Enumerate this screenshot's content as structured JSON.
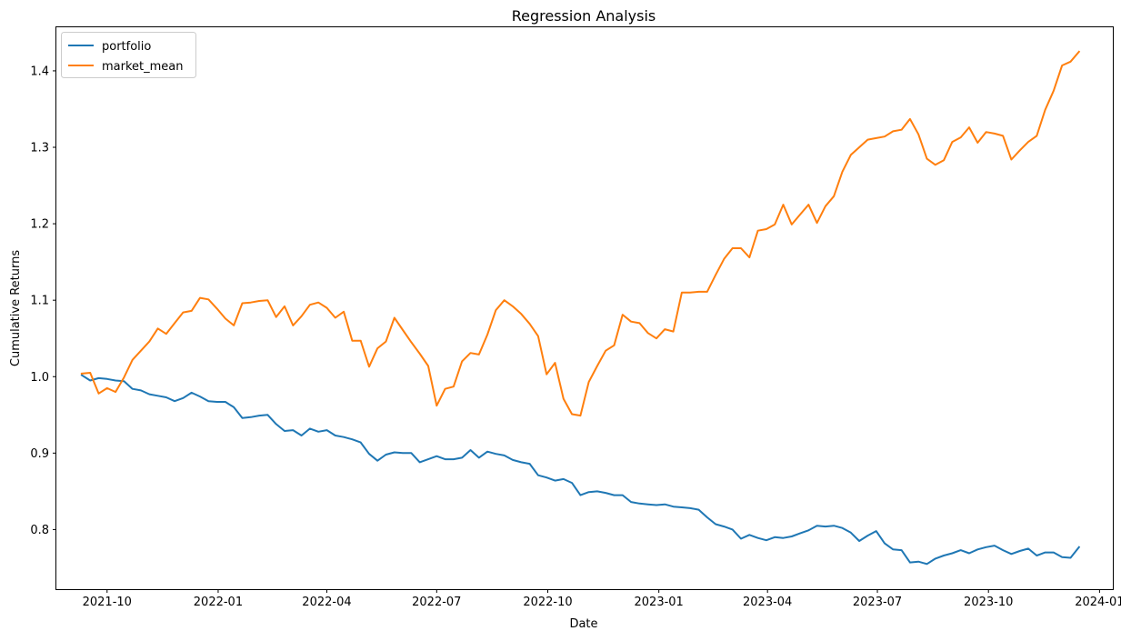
{
  "chart_data": {
    "type": "line",
    "title": "Regression Analysis",
    "xlabel": "Date",
    "ylabel": "Cumulative Returns",
    "x_type": "date",
    "xlim": [
      "2021-08-20",
      "2024-01-12"
    ],
    "ylim": [
      0.722,
      1.457
    ],
    "grid": false,
    "legend_position": "top-left",
    "x_ticks": [
      {
        "date": "2021-10-01",
        "label": "2021-10"
      },
      {
        "date": "2022-01-01",
        "label": "2022-01"
      },
      {
        "date": "2022-04-01",
        "label": "2022-04"
      },
      {
        "date": "2022-07-01",
        "label": "2022-07"
      },
      {
        "date": "2022-10-01",
        "label": "2022-10"
      },
      {
        "date": "2023-01-01",
        "label": "2023-01"
      },
      {
        "date": "2023-04-01",
        "label": "2023-04"
      },
      {
        "date": "2023-07-01",
        "label": "2023-07"
      },
      {
        "date": "2023-10-01",
        "label": "2023-10"
      },
      {
        "date": "2024-01-01",
        "label": "2024-01"
      }
    ],
    "y_ticks": [
      {
        "value": 0.8,
        "label": "0.8"
      },
      {
        "value": 0.9,
        "label": "0.9"
      },
      {
        "value": 1.0,
        "label": "1.0"
      },
      {
        "value": 1.1,
        "label": "1.1"
      },
      {
        "value": 1.2,
        "label": "1.2"
      },
      {
        "value": 1.3,
        "label": "1.3"
      },
      {
        "value": 1.4,
        "label": "1.4"
      }
    ],
    "series": [
      {
        "name": "portfolio",
        "color": "#1f77b4",
        "points": [
          [
            "2021-09-10",
            1.002
          ],
          [
            "2021-09-17",
            0.995
          ],
          [
            "2021-09-24",
            0.998
          ],
          [
            "2021-10-01",
            0.997
          ],
          [
            "2021-10-08",
            0.995
          ],
          [
            "2021-10-15",
            0.994
          ],
          [
            "2021-10-22",
            0.984
          ],
          [
            "2021-10-29",
            0.982
          ],
          [
            "2021-11-05",
            0.977
          ],
          [
            "2021-11-12",
            0.975
          ],
          [
            "2021-11-19",
            0.973
          ],
          [
            "2021-11-26",
            0.968
          ],
          [
            "2021-12-03",
            0.972
          ],
          [
            "2021-12-10",
            0.979
          ],
          [
            "2021-12-17",
            0.974
          ],
          [
            "2021-12-24",
            0.968
          ],
          [
            "2021-12-31",
            0.967
          ],
          [
            "2022-01-07",
            0.967
          ],
          [
            "2022-01-14",
            0.96
          ],
          [
            "2022-01-21",
            0.946
          ],
          [
            "2022-01-28",
            0.947
          ],
          [
            "2022-02-04",
            0.949
          ],
          [
            "2022-02-11",
            0.95
          ],
          [
            "2022-02-18",
            0.938
          ],
          [
            "2022-02-25",
            0.929
          ],
          [
            "2022-03-04",
            0.93
          ],
          [
            "2022-03-11",
            0.923
          ],
          [
            "2022-03-18",
            0.932
          ],
          [
            "2022-03-25",
            0.928
          ],
          [
            "2022-04-01",
            0.93
          ],
          [
            "2022-04-08",
            0.923
          ],
          [
            "2022-04-15",
            0.921
          ],
          [
            "2022-04-22",
            0.918
          ],
          [
            "2022-04-29",
            0.914
          ],
          [
            "2022-05-06",
            0.899
          ],
          [
            "2022-05-13",
            0.89
          ],
          [
            "2022-05-20",
            0.898
          ],
          [
            "2022-05-27",
            0.901
          ],
          [
            "2022-06-03",
            0.9
          ],
          [
            "2022-06-10",
            0.9
          ],
          [
            "2022-06-17",
            0.888
          ],
          [
            "2022-06-24",
            0.892
          ],
          [
            "2022-07-01",
            0.896
          ],
          [
            "2022-07-08",
            0.892
          ],
          [
            "2022-07-15",
            0.892
          ],
          [
            "2022-07-22",
            0.894
          ],
          [
            "2022-07-29",
            0.904
          ],
          [
            "2022-08-05",
            0.894
          ],
          [
            "2022-08-12",
            0.902
          ],
          [
            "2022-08-19",
            0.899
          ],
          [
            "2022-08-26",
            0.897
          ],
          [
            "2022-09-02",
            0.891
          ],
          [
            "2022-09-09",
            0.888
          ],
          [
            "2022-09-16",
            0.886
          ],
          [
            "2022-09-23",
            0.871
          ],
          [
            "2022-09-30",
            0.868
          ],
          [
            "2022-10-07",
            0.864
          ],
          [
            "2022-10-14",
            0.866
          ],
          [
            "2022-10-21",
            0.861
          ],
          [
            "2022-10-28",
            0.845
          ],
          [
            "2022-11-04",
            0.849
          ],
          [
            "2022-11-11",
            0.85
          ],
          [
            "2022-11-18",
            0.848
          ],
          [
            "2022-11-25",
            0.845
          ],
          [
            "2022-12-02",
            0.845
          ],
          [
            "2022-12-09",
            0.836
          ],
          [
            "2022-12-16",
            0.834
          ],
          [
            "2022-12-23",
            0.833
          ],
          [
            "2022-12-30",
            0.832
          ],
          [
            "2023-01-06",
            0.833
          ],
          [
            "2023-01-13",
            0.83
          ],
          [
            "2023-01-20",
            0.829
          ],
          [
            "2023-01-27",
            0.828
          ],
          [
            "2023-02-03",
            0.826
          ],
          [
            "2023-02-10",
            0.816
          ],
          [
            "2023-02-17",
            0.807
          ],
          [
            "2023-02-24",
            0.804
          ],
          [
            "2023-03-03",
            0.8
          ],
          [
            "2023-03-10",
            0.788
          ],
          [
            "2023-03-17",
            0.793
          ],
          [
            "2023-03-24",
            0.789
          ],
          [
            "2023-03-31",
            0.786
          ],
          [
            "2023-04-07",
            0.79
          ],
          [
            "2023-04-14",
            0.789
          ],
          [
            "2023-04-21",
            0.791
          ],
          [
            "2023-04-28",
            0.795
          ],
          [
            "2023-05-05",
            0.799
          ],
          [
            "2023-05-12",
            0.805
          ],
          [
            "2023-05-19",
            0.804
          ],
          [
            "2023-05-26",
            0.805
          ],
          [
            "2023-06-02",
            0.802
          ],
          [
            "2023-06-09",
            0.796
          ],
          [
            "2023-06-16",
            0.785
          ],
          [
            "2023-06-23",
            0.792
          ],
          [
            "2023-06-30",
            0.798
          ],
          [
            "2023-07-07",
            0.782
          ],
          [
            "2023-07-14",
            0.774
          ],
          [
            "2023-07-21",
            0.773
          ],
          [
            "2023-07-28",
            0.757
          ],
          [
            "2023-08-04",
            0.758
          ],
          [
            "2023-08-11",
            0.755
          ],
          [
            "2023-08-18",
            0.762
          ],
          [
            "2023-08-25",
            0.766
          ],
          [
            "2023-09-01",
            0.769
          ],
          [
            "2023-09-08",
            0.773
          ],
          [
            "2023-09-15",
            0.769
          ],
          [
            "2023-09-22",
            0.774
          ],
          [
            "2023-09-29",
            0.777
          ],
          [
            "2023-10-06",
            0.779
          ],
          [
            "2023-10-13",
            0.773
          ],
          [
            "2023-10-20",
            0.768
          ],
          [
            "2023-10-27",
            0.772
          ],
          [
            "2023-11-03",
            0.775
          ],
          [
            "2023-11-10",
            0.766
          ],
          [
            "2023-11-17",
            0.77
          ],
          [
            "2023-11-24",
            0.77
          ],
          [
            "2023-12-01",
            0.764
          ],
          [
            "2023-12-08",
            0.763
          ],
          [
            "2023-12-15",
            0.777
          ]
        ]
      },
      {
        "name": "market_mean",
        "color": "#ff7f0e",
        "points": [
          [
            "2021-09-10",
            1.004
          ],
          [
            "2021-09-17",
            1.005
          ],
          [
            "2021-09-24",
            0.978
          ],
          [
            "2021-10-01",
            0.985
          ],
          [
            "2021-10-08",
            0.98
          ],
          [
            "2021-10-15",
            0.999
          ],
          [
            "2021-10-22",
            1.022
          ],
          [
            "2021-10-29",
            1.034
          ],
          [
            "2021-11-05",
            1.046
          ],
          [
            "2021-11-12",
            1.063
          ],
          [
            "2021-11-19",
            1.056
          ],
          [
            "2021-11-26",
            1.07
          ],
          [
            "2021-12-03",
            1.084
          ],
          [
            "2021-12-10",
            1.086
          ],
          [
            "2021-12-17",
            1.103
          ],
          [
            "2021-12-24",
            1.101
          ],
          [
            "2021-12-31",
            1.089
          ],
          [
            "2022-01-07",
            1.076
          ],
          [
            "2022-01-14",
            1.067
          ],
          [
            "2022-01-21",
            1.096
          ],
          [
            "2022-01-28",
            1.097
          ],
          [
            "2022-02-04",
            1.099
          ],
          [
            "2022-02-11",
            1.1
          ],
          [
            "2022-02-18",
            1.078
          ],
          [
            "2022-02-25",
            1.092
          ],
          [
            "2022-03-04",
            1.067
          ],
          [
            "2022-03-11",
            1.079
          ],
          [
            "2022-03-18",
            1.094
          ],
          [
            "2022-03-25",
            1.097
          ],
          [
            "2022-04-01",
            1.09
          ],
          [
            "2022-04-08",
            1.077
          ],
          [
            "2022-04-15",
            1.085
          ],
          [
            "2022-04-22",
            1.047
          ],
          [
            "2022-04-29",
            1.047
          ],
          [
            "2022-05-06",
            1.013
          ],
          [
            "2022-05-13",
            1.037
          ],
          [
            "2022-05-20",
            1.046
          ],
          [
            "2022-05-27",
            1.077
          ],
          [
            "2022-06-03",
            1.061
          ],
          [
            "2022-06-10",
            1.045
          ],
          [
            "2022-06-17",
            1.03
          ],
          [
            "2022-06-24",
            1.014
          ],
          [
            "2022-07-01",
            0.962
          ],
          [
            "2022-07-08",
            0.984
          ],
          [
            "2022-07-15",
            0.987
          ],
          [
            "2022-07-22",
            1.02
          ],
          [
            "2022-07-29",
            1.031
          ],
          [
            "2022-08-05",
            1.029
          ],
          [
            "2022-08-12",
            1.055
          ],
          [
            "2022-08-19",
            1.087
          ],
          [
            "2022-08-26",
            1.1
          ],
          [
            "2022-09-02",
            1.092
          ],
          [
            "2022-09-09",
            1.082
          ],
          [
            "2022-09-16",
            1.069
          ],
          [
            "2022-09-23",
            1.053
          ],
          [
            "2022-09-30",
            1.003
          ],
          [
            "2022-10-07",
            1.018
          ],
          [
            "2022-10-14",
            0.971
          ],
          [
            "2022-10-21",
            0.951
          ],
          [
            "2022-10-28",
            0.949
          ],
          [
            "2022-11-04",
            0.993
          ],
          [
            "2022-11-11",
            1.014
          ],
          [
            "2022-11-18",
            1.034
          ],
          [
            "2022-11-25",
            1.041
          ],
          [
            "2022-12-02",
            1.081
          ],
          [
            "2022-12-09",
            1.072
          ],
          [
            "2022-12-16",
            1.07
          ],
          [
            "2022-12-23",
            1.057
          ],
          [
            "2022-12-30",
            1.05
          ],
          [
            "2023-01-06",
            1.062
          ],
          [
            "2023-01-13",
            1.059
          ],
          [
            "2023-01-20",
            1.11
          ],
          [
            "2023-01-27",
            1.11
          ],
          [
            "2023-02-03",
            1.111
          ],
          [
            "2023-02-10",
            1.111
          ],
          [
            "2023-02-17",
            1.133
          ],
          [
            "2023-02-24",
            1.154
          ],
          [
            "2023-03-03",
            1.168
          ],
          [
            "2023-03-10",
            1.168
          ],
          [
            "2023-03-17",
            1.156
          ],
          [
            "2023-03-24",
            1.191
          ],
          [
            "2023-03-31",
            1.193
          ],
          [
            "2023-04-07",
            1.199
          ],
          [
            "2023-04-14",
            1.225
          ],
          [
            "2023-04-21",
            1.199
          ],
          [
            "2023-04-28",
            1.212
          ],
          [
            "2023-05-05",
            1.225
          ],
          [
            "2023-05-12",
            1.201
          ],
          [
            "2023-05-19",
            1.223
          ],
          [
            "2023-05-26",
            1.236
          ],
          [
            "2023-06-02",
            1.268
          ],
          [
            "2023-06-09",
            1.29
          ],
          [
            "2023-06-16",
            1.3
          ],
          [
            "2023-06-23",
            1.31
          ],
          [
            "2023-06-30",
            1.312
          ],
          [
            "2023-07-07",
            1.314
          ],
          [
            "2023-07-14",
            1.321
          ],
          [
            "2023-07-21",
            1.323
          ],
          [
            "2023-07-28",
            1.337
          ],
          [
            "2023-08-04",
            1.317
          ],
          [
            "2023-08-11",
            1.285
          ],
          [
            "2023-08-18",
            1.277
          ],
          [
            "2023-08-25",
            1.283
          ],
          [
            "2023-09-01",
            1.307
          ],
          [
            "2023-09-08",
            1.313
          ],
          [
            "2023-09-15",
            1.326
          ],
          [
            "2023-09-22",
            1.306
          ],
          [
            "2023-09-29",
            1.32
          ],
          [
            "2023-10-06",
            1.318
          ],
          [
            "2023-10-13",
            1.315
          ],
          [
            "2023-10-20",
            1.284
          ],
          [
            "2023-10-27",
            1.296
          ],
          [
            "2023-11-03",
            1.307
          ],
          [
            "2023-11-10",
            1.315
          ],
          [
            "2023-11-17",
            1.349
          ],
          [
            "2023-11-24",
            1.374
          ],
          [
            "2023-12-01",
            1.407
          ],
          [
            "2023-12-08",
            1.412
          ],
          [
            "2023-12-15",
            1.425
          ]
        ]
      }
    ]
  }
}
